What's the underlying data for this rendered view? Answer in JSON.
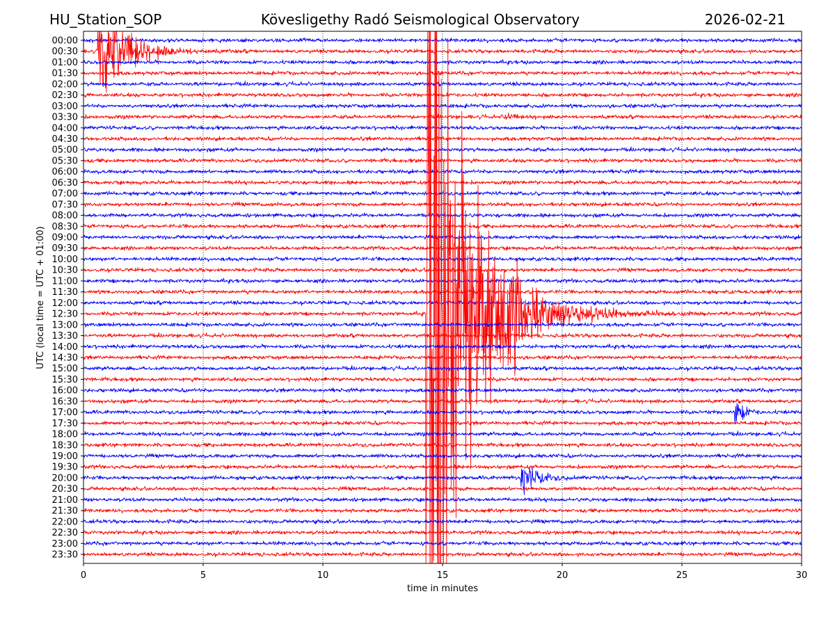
{
  "chart_data": {
    "type": "line",
    "title_left": "HU_Station_SOP",
    "title": "Kövesligethy Radó Seismological Observatory",
    "title_right": "2026-02-21",
    "xlabel": "time in minutes",
    "ylabel": "UTC (local time = UTC + 01:00)",
    "xlim": [
      0,
      30
    ],
    "xticks": [
      0,
      5,
      10,
      15,
      20,
      25,
      30
    ],
    "grid": "vertical dotted at x ticks",
    "row_colors": [
      "#0000ff",
      "#ff0000"
    ],
    "rows": [
      "00:00",
      "00:30",
      "01:00",
      "01:30",
      "02:00",
      "02:30",
      "03:00",
      "03:30",
      "04:00",
      "04:30",
      "05:00",
      "05:30",
      "06:00",
      "06:30",
      "07:00",
      "07:30",
      "08:00",
      "08:30",
      "09:00",
      "09:30",
      "10:00",
      "10:30",
      "11:00",
      "11:30",
      "12:00",
      "12:30",
      "13:00",
      "13:30",
      "14:00",
      "14:30",
      "15:00",
      "15:30",
      "16:00",
      "16:30",
      "17:00",
      "17:30",
      "18:00",
      "18:30",
      "19:00",
      "19:30",
      "20:00",
      "20:30",
      "21:00",
      "21:30",
      "22:00",
      "22:30",
      "23:00",
      "23:30"
    ],
    "events": [
      {
        "row": "12:30",
        "start_min": 14.3,
        "peak_rows": 30,
        "decay_min": 1.6
      },
      {
        "row": "00:30",
        "start_min": 0.6,
        "peak_rows": 4,
        "decay_min": 1.0
      },
      {
        "row": "20:00",
        "start_min": 18.25,
        "peak_rows": 1.8,
        "decay_min": 0.5
      },
      {
        "row": "17:00",
        "start_min": 27.2,
        "peak_rows": 1.2,
        "decay_min": 0.3
      },
      {
        "row": "03:30",
        "start_min": 17.6,
        "peak_rows": 0.3,
        "decay_min": 0.3
      }
    ]
  }
}
